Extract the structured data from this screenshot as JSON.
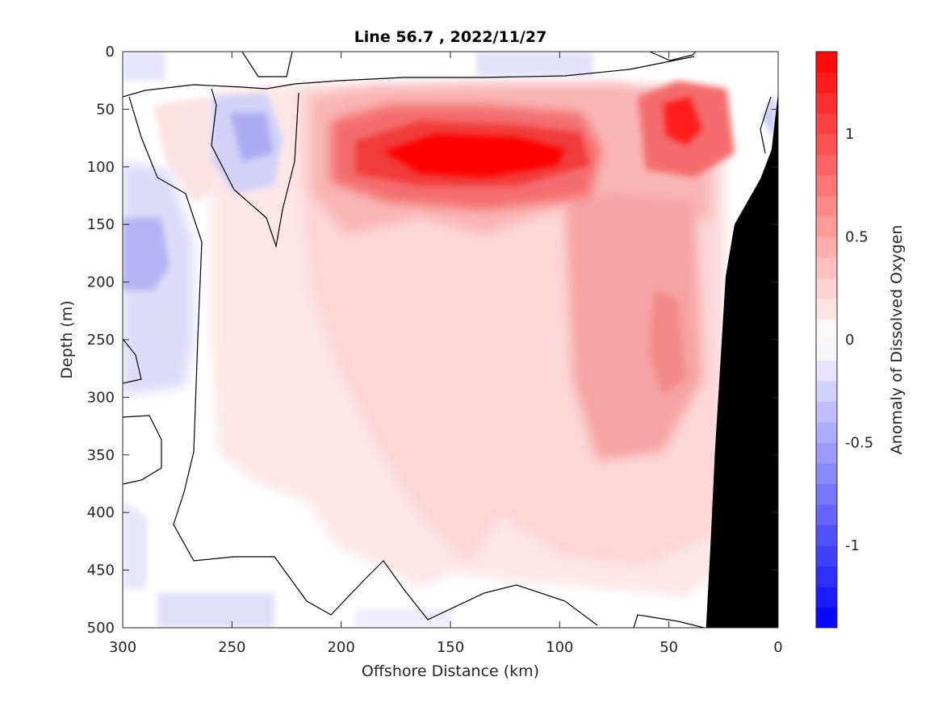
{
  "chart_data": {
    "type": "heatmap",
    "subtype": "filled-contour",
    "title": "Line 56.7 , 2022/11/27",
    "xlabel": "Offshore Distance (km)",
    "ylabel": "Depth (m)",
    "colorbar_label": "Anomaly of Dissolved Oxygen",
    "xlim": [
      300,
      0
    ],
    "ylim": [
      0,
      500
    ],
    "x_reversed": true,
    "y_reversed": true,
    "x_ticks": [
      300,
      250,
      200,
      150,
      100,
      50,
      0
    ],
    "y_ticks": [
      0,
      50,
      100,
      150,
      200,
      250,
      300,
      350,
      400,
      450,
      500
    ],
    "colorbar": {
      "range": [
        -1.4,
        1.4
      ],
      "ticks": [
        -1,
        -0.5,
        0,
        0.5,
        1
      ],
      "tick_labels": [
        "-1",
        "-0.5",
        "0",
        "0.5",
        "1"
      ],
      "levels": 28,
      "negative_color": "#0000ff",
      "positive_color": "#ff0000",
      "zero_color": "#ffffff"
    },
    "zero_contour_line_color": "#000000",
    "bathymetry": {
      "fill": "#000000",
      "points": [
        [
          33,
          500
        ],
        [
          31,
          430
        ],
        [
          29,
          350
        ],
        [
          24,
          195
        ],
        [
          20,
          150
        ],
        [
          8,
          110
        ],
        [
          3,
          85
        ],
        [
          0,
          35
        ],
        [
          0,
          500
        ]
      ]
    },
    "features": [
      {
        "label": "max positive core",
        "x": 140,
        "y": 90,
        "value": 1.4
      },
      {
        "label": "nearshore positive core",
        "x": 42,
        "y": 60,
        "value": 1.2
      },
      {
        "label": "offshore negative",
        "x": 290,
        "y": 160,
        "value": -0.5
      },
      {
        "label": "negative patch",
        "x": 237,
        "y": 75,
        "value": -0.45
      }
    ]
  }
}
